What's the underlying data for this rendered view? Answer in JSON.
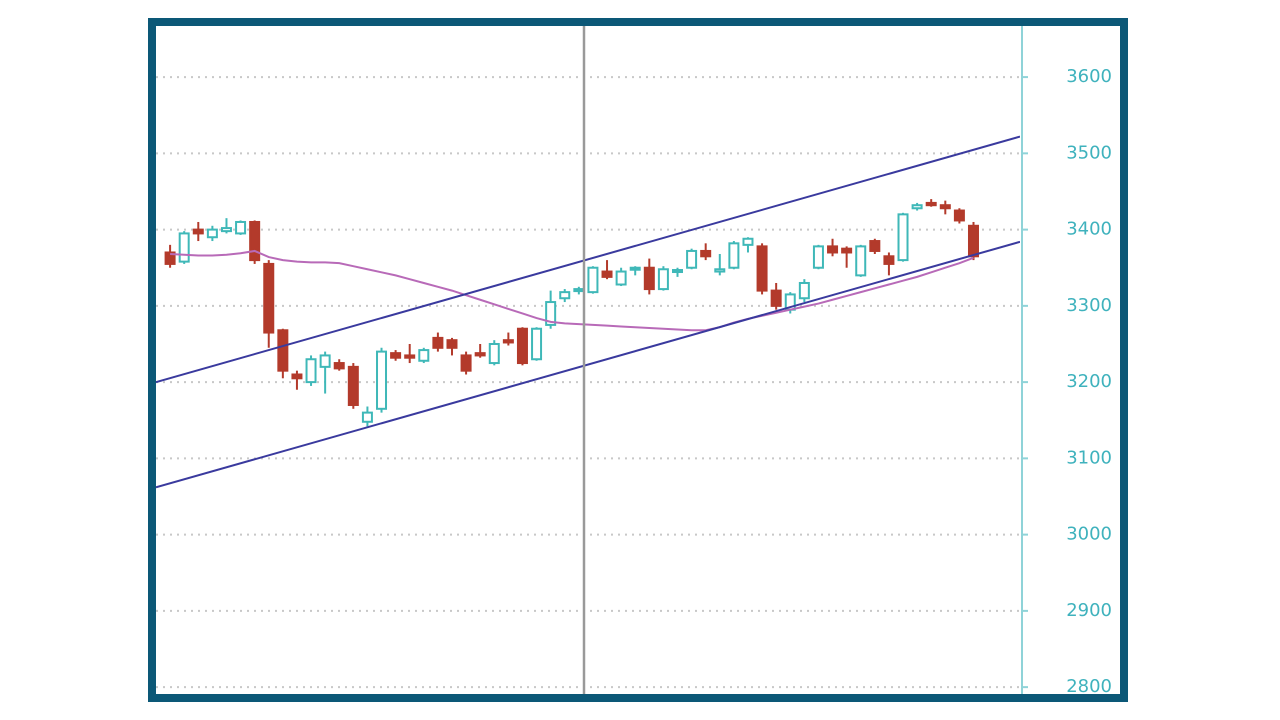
{
  "chart_data": {
    "type": "candlestick",
    "open": [
      3370,
      3358,
      3400,
      3390,
      3398,
      3395,
      3410,
      3355,
      3268,
      3210,
      3200,
      3220,
      3225,
      3220,
      3148,
      3165,
      3238,
      3235,
      3228,
      3258,
      3255,
      3235,
      3238,
      3225,
      3255,
      3270,
      3230,
      3275,
      3310,
      3320,
      3318,
      3345,
      3328,
      3348,
      3350,
      3322,
      3345,
      3350,
      3372,
      3345,
      3350,
      3380,
      3378,
      3320,
      3295,
      3310,
      3350,
      3378,
      3375,
      3340,
      3385,
      3365,
      3360,
      3428,
      3435,
      3432,
      3425,
      3405
    ],
    "high": [
      3380,
      3398,
      3410,
      3405,
      3415,
      3412,
      3412,
      3360,
      3270,
      3215,
      3235,
      3240,
      3230,
      3225,
      3168,
      3245,
      3242,
      3250,
      3245,
      3265,
      3258,
      3240,
      3250,
      3255,
      3265,
      3272,
      3272,
      3320,
      3322,
      3325,
      3352,
      3360,
      3350,
      3352,
      3362,
      3352,
      3350,
      3375,
      3382,
      3368,
      3385,
      3390,
      3382,
      3330,
      3318,
      3335,
      3380,
      3388,
      3378,
      3380,
      3388,
      3370,
      3422,
      3435,
      3440,
      3438,
      3428,
      3410
    ],
    "low": [
      3350,
      3355,
      3385,
      3385,
      3395,
      3393,
      3355,
      3245,
      3205,
      3190,
      3195,
      3185,
      3215,
      3165,
      3142,
      3160,
      3228,
      3225,
      3225,
      3240,
      3235,
      3210,
      3232,
      3222,
      3248,
      3222,
      3228,
      3270,
      3305,
      3315,
      3316,
      3335,
      3326,
      3340,
      3315,
      3320,
      3338,
      3348,
      3360,
      3340,
      3348,
      3370,
      3315,
      3295,
      3290,
      3305,
      3348,
      3365,
      3350,
      3338,
      3368,
      3340,
      3358,
      3425,
      3430,
      3420,
      3408,
      3360
    ],
    "close": [
      3355,
      3395,
      3395,
      3400,
      3402,
      3410,
      3360,
      3265,
      3215,
      3205,
      3230,
      3235,
      3218,
      3170,
      3160,
      3240,
      3232,
      3232,
      3242,
      3245,
      3245,
      3215,
      3235,
      3250,
      3252,
      3225,
      3270,
      3305,
      3318,
      3322,
      3350,
      3338,
      3345,
      3350,
      3322,
      3348,
      3347,
      3372,
      3365,
      3348,
      3382,
      3388,
      3320,
      3300,
      3315,
      3330,
      3378,
      3370,
      3370,
      3378,
      3372,
      3355,
      3420,
      3432,
      3432,
      3428,
      3412,
      3365
    ],
    "up_color": "#3fb8b8",
    "down_color": "#b33a2b",
    "moving_average": {
      "color": "#b86ab8",
      "values": [
        3368,
        3367,
        3366,
        3366,
        3367,
        3369,
        3372,
        3364,
        3360,
        3358,
        3357,
        3357,
        3356,
        3352,
        3348,
        3344,
        3340,
        3335,
        3330,
        3325,
        3320,
        3314,
        3308,
        3302,
        3296,
        3290,
        3284,
        3279,
        3277,
        3276,
        3275,
        3274,
        3273,
        3272,
        3271,
        3270,
        3269,
        3268,
        3268,
        3272,
        3278,
        3283,
        3287,
        3291,
        3295,
        3299,
        3303,
        3308,
        3313,
        3318,
        3323,
        3328,
        3333,
        3338,
        3344,
        3350,
        3356,
        3363
      ]
    },
    "trendlines": [
      {
        "color": "#3a3a9e",
        "x": [
          -1,
          60.3
        ],
        "values": [
          3200,
          3522
        ]
      },
      {
        "color": "#3a3a9e",
        "x": [
          -1,
          60.3
        ],
        "values": [
          3062,
          3384
        ]
      }
    ],
    "xlim": [
      -1,
      60.3
    ],
    "ylim": [
      2791,
      3667
    ],
    "yticks": [
      2800,
      2900,
      3000,
      3100,
      3200,
      3300,
      3400,
      3500,
      3600
    ],
    "grid": true
  }
}
